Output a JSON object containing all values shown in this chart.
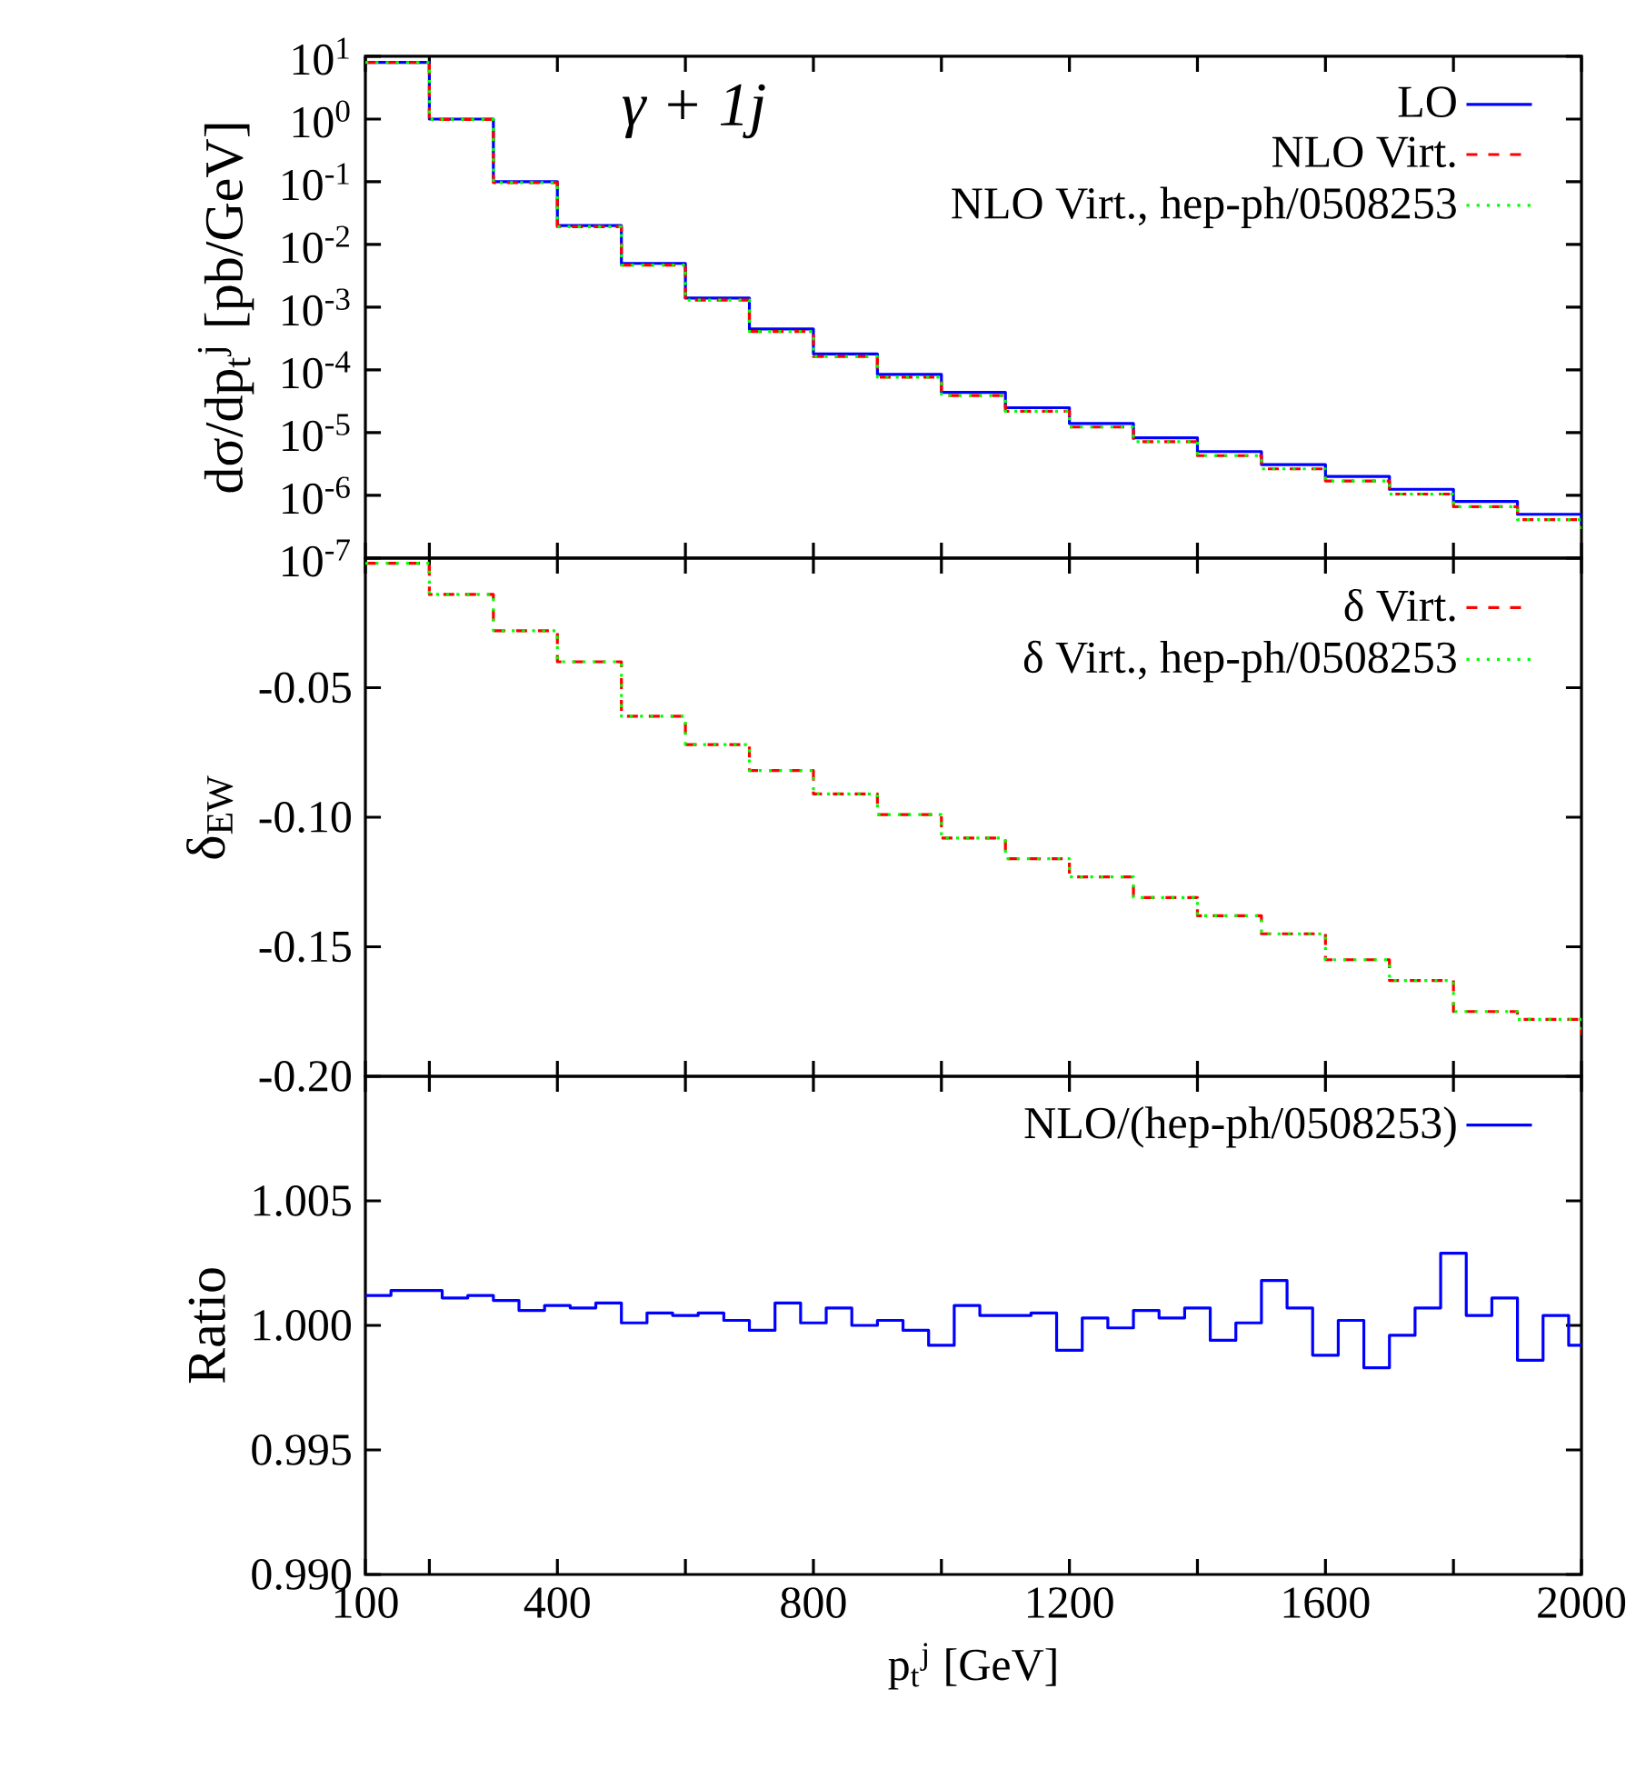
{
  "chart_data": [
    {
      "type": "step",
      "ylabel": "dσ/dp$_{t}$$^{j}$ [pb/GeV]",
      "annotations": [
        "γ + 1j"
      ],
      "log": "y",
      "legend": "top right",
      "tick_labels": "y",
      "xlim": [
        100,
        2000
      ],
      "xticks": [
        {
          "value": 100,
          "label": null
        },
        {
          "value": 200,
          "label": null
        },
        {
          "value": 400,
          "label": null
        },
        {
          "value": 600,
          "label": null
        },
        {
          "value": 800,
          "label": null
        },
        {
          "value": 1000,
          "label": null
        },
        {
          "value": 1200,
          "label": null
        },
        {
          "value": 1400,
          "label": null
        },
        {
          "value": 1600,
          "label": null
        },
        {
          "value": 1800,
          "label": null
        },
        {
          "value": 2000,
          "label": null
        }
      ],
      "ylim": [
        1e-07,
        10
      ],
      "yticks": [
        {
          "value": 10,
          "label": "10$^{1}$"
        },
        {
          "value": 1,
          "label": "10$^{0}$"
        },
        {
          "value": 0.1,
          "label": "10$^{-1}$"
        },
        {
          "value": 0.01,
          "label": "10$^{-2}$"
        },
        {
          "value": 0.001,
          "label": "10$^{-3}$"
        },
        {
          "value": 0.0001,
          "label": "10$^{-4}$"
        },
        {
          "value": 1e-05,
          "label": "10$^{-5}$"
        },
        {
          "value": 1e-06,
          "label": "10$^{-6}$"
        },
        {
          "value": 1e-07,
          "label": "10$^{-7}$"
        }
      ],
      "x": [
        100,
        200,
        300,
        400,
        500,
        600,
        700,
        800,
        900,
        1000,
        1100,
        1200,
        1300,
        1400,
        1500,
        1600,
        1700,
        1800,
        1900,
        2000
      ],
      "series": [
        {
          "name": "LO",
          "color": "#0000ff",
          "line_style": "solid",
          "values": [
            8,
            1.0,
            0.1,
            0.02,
            0.005,
            0.0014,
            0.00045,
            0.00018,
            8.5e-05,
            4.4e-05,
            2.5e-05,
            1.4e-05,
            8.3e-06,
            5e-06,
            3.1e-06,
            2e-06,
            1.25e-06,
            8e-07,
            5e-07,
            3.5e-07
          ]
        },
        {
          "name": "NLO Virt.",
          "color": "#ff0000",
          "line_style": "dashed",
          "values": [
            7.98,
            0.986,
            0.0972,
            0.0192,
            0.0047,
            0.0013,
            0.00041,
            0.000164,
            7.7e-05,
            3.9e-05,
            2.2e-05,
            1.23e-05,
            7.2e-06,
            4.3e-06,
            2.65e-06,
            1.7e-06,
            1.05e-06,
            6.6e-07,
            4.1e-07,
            2.9e-07
          ]
        },
        {
          "name": "NLO Virt., hep-ph/0508253",
          "color": "#00ff00",
          "line_style": "dotted",
          "values": [
            7.98,
            0.986,
            0.0972,
            0.0192,
            0.0047,
            0.0013,
            0.00041,
            0.000164,
            7.7e-05,
            3.9e-05,
            2.2e-05,
            1.23e-05,
            7.2e-06,
            4.3e-06,
            2.65e-06,
            1.7e-06,
            1.05e-06,
            6.6e-07,
            4.1e-07,
            2.9e-07
          ]
        }
      ]
    },
    {
      "type": "step",
      "ylabel": "δ$_{EW}$",
      "legend": "top right",
      "tick_labels": "y",
      "xlim": [
        100,
        2000
      ],
      "xticks": [
        {
          "value": 100,
          "label": null
        },
        {
          "value": 200,
          "label": null
        },
        {
          "value": 400,
          "label": null
        },
        {
          "value": 600,
          "label": null
        },
        {
          "value": 800,
          "label": null
        },
        {
          "value": 1000,
          "label": null
        },
        {
          "value": 1200,
          "label": null
        },
        {
          "value": 1400,
          "label": null
        },
        {
          "value": 1600,
          "label": null
        },
        {
          "value": 1800,
          "label": null
        },
        {
          "value": 2000,
          "label": null
        }
      ],
      "ylim": [
        -0.2,
        0
      ],
      "yticks": [
        {
          "value": -0.2,
          "label": "-0.20"
        },
        -0.15,
        {
          "value": -0.1,
          "label": "-0.10"
        },
        -0.05
      ],
      "x": [
        100,
        200,
        300,
        400,
        500,
        600,
        700,
        800,
        900,
        1000,
        1100,
        1200,
        1300,
        1400,
        1500,
        1600,
        1700,
        1800,
        1900,
        2000
      ],
      "series": [
        {
          "name": "δ Virt.",
          "color": "#ff0000",
          "line_style": "dashed",
          "values": [
            -0.002,
            -0.014,
            -0.028,
            -0.04,
            -0.061,
            -0.072,
            -0.082,
            -0.091,
            -0.099,
            -0.108,
            -0.116,
            -0.123,
            -0.131,
            -0.138,
            -0.145,
            -0.155,
            -0.163,
            -0.175,
            -0.178,
            -0.184
          ]
        },
        {
          "name": "δ Virt., hep-ph/0508253",
          "color": "#00ff00",
          "line_style": "dotted",
          "values": [
            -0.002,
            -0.014,
            -0.028,
            -0.04,
            -0.061,
            -0.072,
            -0.082,
            -0.091,
            -0.099,
            -0.108,
            -0.116,
            -0.123,
            -0.131,
            -0.138,
            -0.145,
            -0.155,
            -0.163,
            -0.175,
            -0.178,
            -0.184
          ]
        }
      ]
    },
    {
      "type": "step",
      "xlabel": "p$_{t}$$^{j}$ [GeV]",
      "ylabel": "Ratio",
      "legend": "top right",
      "xlim": [
        100,
        2000
      ],
      "xticks": [
        100,
        {
          "value": 200,
          "label": null
        },
        400,
        {
          "value": 600,
          "label": null
        },
        800,
        {
          "value": 1000,
          "label": null
        },
        1200,
        {
          "value": 1400,
          "label": null
        },
        1600,
        {
          "value": 1800,
          "label": null
        },
        2000
      ],
      "ylim": [
        0.99,
        1.01
      ],
      "yticks": [
        {
          "value": 0.99,
          "label": "0.990"
        },
        0.995,
        {
          "value": 1.0,
          "label": "1.000"
        },
        1.005
      ],
      "x": [
        100,
        140,
        180,
        220,
        260,
        300,
        340,
        380,
        420,
        460,
        500,
        540,
        580,
        620,
        660,
        700,
        740,
        780,
        820,
        860,
        900,
        940,
        980,
        1020,
        1060,
        1100,
        1140,
        1180,
        1220,
        1260,
        1300,
        1340,
        1380,
        1420,
        1460,
        1500,
        1540,
        1580,
        1620,
        1660,
        1700,
        1740,
        1780,
        1820,
        1860,
        1900,
        1940,
        1980,
        2000
      ],
      "series": [
        {
          "name": "NLO/(hep-ph/0508253)",
          "color": "#0000ff",
          "line_style": "solid",
          "values": [
            1.0012,
            1.0014,
            1.0014,
            1.0011,
            1.0012,
            1.001,
            1.0006,
            1.0008,
            1.0007,
            1.0009,
            1.0001,
            1.0005,
            1.0004,
            1.0005,
            1.0002,
            0.9998,
            1.0009,
            1.0001,
            1.0007,
            1.0,
            1.0002,
            0.9998,
            0.9992,
            1.0008,
            1.0004,
            1.0004,
            1.0005,
            0.999,
            1.0003,
            0.9999,
            1.0006,
            1.0003,
            1.0007,
            0.9994,
            1.0001,
            1.0018,
            1.0007,
            0.9988,
            1.0002,
            0.9983,
            0.9996,
            1.0007,
            1.0029,
            1.0004,
            1.0011,
            0.9986,
            1.0004,
            0.9992,
            0.9993
          ]
        }
      ]
    }
  ]
}
